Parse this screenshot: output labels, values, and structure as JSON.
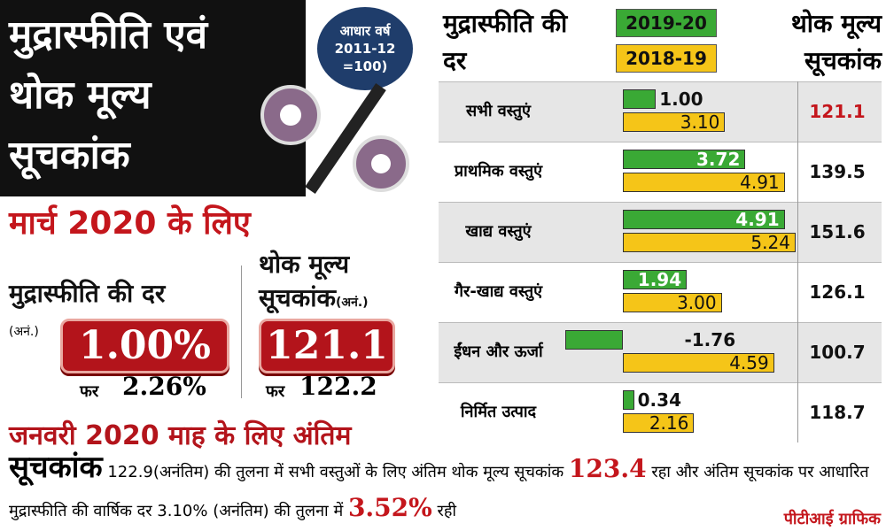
{
  "header": {
    "title_lines": [
      "मुद्रास्फीति एवं",
      "थोक मूल्य",
      "सूचकांक"
    ],
    "base_year_lines": [
      "आधार वर्ष",
      "2011-12",
      "=100)"
    ]
  },
  "march": {
    "heading": "मार्च 2020 के लिए",
    "inflation": {
      "label": "मुद्रास्फीति की दर",
      "note": "(अनं.)",
      "value": "1.00%",
      "prev_label": "फर",
      "prev_value": "2.26%"
    },
    "wpi": {
      "label": "थोक मूल्य सूचकांक",
      "note": "(अनं.)",
      "value": "121.1",
      "prev_label": "फर",
      "prev_value": "122.2"
    }
  },
  "january": {
    "heading": "जनवरी 2020 माह के लिए अंतिम",
    "text": [
      {
        "t": "सूचकांक",
        "style": "big"
      },
      {
        "t": " 122.9(अनंतिम) की तुलना में सभी वस्तुओं के लिए अंतिम थोक मूल्य सूचकांक ",
        "style": "plain"
      },
      {
        "t": "123.4",
        "style": "red"
      },
      {
        "t": " रहा और अंतिम सूचकांक पर आधारित मुद्रास्फीति की वार्षिक दर 3.10% (अनंतिम) की तुलना में ",
        "style": "plain"
      },
      {
        "t": "3.52%",
        "style": "red"
      },
      {
        "t": " रही",
        "style": "plain"
      }
    ]
  },
  "credit": "पीटीआई ग्राफिक",
  "chart_data": {
    "type": "bar",
    "orientation": "horizontal",
    "title": "मुद्रास्फीति की दर",
    "categories": [
      "सभी वस्तुएं",
      "प्राथमिक वस्तुएं",
      "खाद्य वस्तुएं",
      "गैर-खाद्य वस्तुएं",
      "ईंधन और ऊर्जा",
      "निर्मित उत्पाद"
    ],
    "series": [
      {
        "name": "2019-20",
        "color": "#3aa935",
        "values": [
          1.0,
          3.72,
          4.91,
          1.94,
          -1.76,
          0.34
        ],
        "value_labels": [
          "1.00",
          "3.72",
          "4.91",
          "1.94",
          "-1.76",
          "0.34"
        ]
      },
      {
        "name": "2018-19",
        "color": "#f5c518",
        "values": [
          3.1,
          4.91,
          5.24,
          3.0,
          4.59,
          2.16
        ],
        "value_labels": [
          "3.10",
          "4.91",
          "5.24",
          "3.00",
          "4.59",
          "2.16"
        ]
      }
    ],
    "index_column": {
      "title": "थोक मूल्य सूचकांक",
      "values": [
        121.1,
        139.5,
        151.6,
        126.1,
        100.7,
        118.7
      ]
    }
  }
}
